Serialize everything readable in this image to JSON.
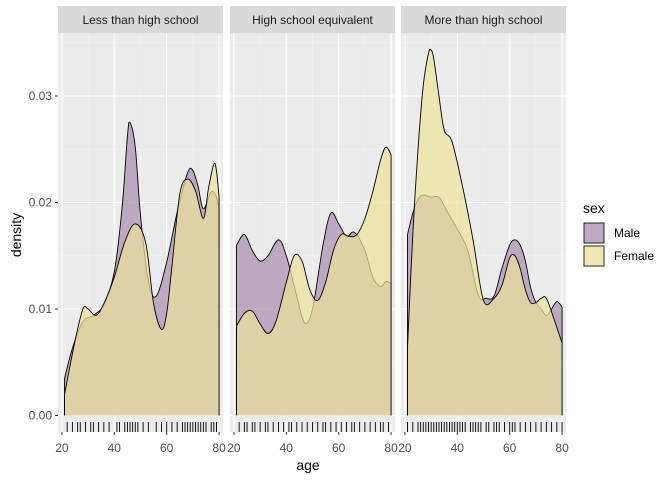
{
  "chart_data": {
    "type": "area",
    "subtype": "faceted-density-with-rug",
    "ylabel": "density",
    "xlabel": "age",
    "x_ticks": [
      20,
      40,
      60,
      80
    ],
    "y_ticks": [
      "0.00",
      "0.01",
      "0.02",
      "0.03"
    ],
    "ylim": [
      0,
      0.0355
    ],
    "xlim": [
      18.5,
      81.5
    ],
    "grid": true,
    "legend": {
      "title": "sex",
      "position": "right",
      "entries": [
        {
          "label": "Male",
          "color": "#a98fb0"
        },
        {
          "label": "Female",
          "color": "#ebe09a"
        }
      ]
    },
    "colors": {
      "male_fill": "#a98fb0",
      "female_fill": "#ebe09a",
      "overlap_fill": "#cdb78f",
      "panel_bg": "#ebebeb",
      "strip_bg": "#d9d9d9"
    },
    "panels": [
      {
        "title": "Less than high school",
        "series": [
          {
            "name": "Male",
            "x": [
              21,
              24,
              28,
              32,
              36,
              40,
              43,
              45,
              46,
              48,
              50,
              53,
              56,
              60,
              64,
              68,
              70,
              72,
              74,
              77,
              79,
              80
            ],
            "y": [
              0.0035,
              0.0063,
              0.0088,
              0.0094,
              0.0104,
              0.0135,
              0.0196,
              0.0262,
              0.0275,
              0.0252,
              0.0188,
              0.0126,
              0.0112,
              0.0144,
              0.0191,
              0.0228,
              0.023,
              0.0215,
              0.0194,
              0.021,
              0.0205,
              0.0194
            ]
          },
          {
            "name": "Female",
            "x": [
              21,
              25,
              28,
              30,
              33,
              36,
              40,
              44,
              48,
              52,
              55,
              58,
              60,
              62,
              65,
              68,
              71,
              74,
              76,
              78,
              79,
              80
            ],
            "y": [
              0.002,
              0.007,
              0.01,
              0.01,
              0.0094,
              0.0105,
              0.013,
              0.0163,
              0.018,
              0.0162,
              0.0105,
              0.0081,
              0.0096,
              0.014,
              0.0208,
              0.0222,
              0.0211,
              0.0185,
              0.0214,
              0.0236,
              0.023,
              0.0205
            ]
          }
        ],
        "rug": [
          22,
          24,
          26,
          27,
          29,
          31,
          32,
          34,
          36,
          38,
          41,
          42,
          44,
          45,
          46,
          47,
          48,
          49,
          51,
          53,
          56,
          58,
          60,
          62,
          64,
          66,
          67,
          68,
          69,
          70,
          71,
          72,
          73,
          74,
          75,
          77,
          78,
          79
        ]
      },
      {
        "title": "High school equivalent",
        "series": [
          {
            "name": "Male",
            "x": [
              21,
              24,
              27,
              30,
              33,
              37,
              40,
              44,
              47,
              50,
              54,
              57,
              60,
              63,
              66,
              70,
              73,
              76,
              78,
              80
            ],
            "y": [
              0.016,
              0.017,
              0.0155,
              0.0145,
              0.015,
              0.0165,
              0.015,
              0.0112,
              0.0087,
              0.01,
              0.016,
              0.019,
              0.018,
              0.0168,
              0.0172,
              0.0155,
              0.013,
              0.0121,
              0.0126,
              0.0124
            ]
          },
          {
            "name": "Female",
            "x": [
              21,
              24,
              27,
              30,
              33,
              36,
              40,
              43,
              46,
              49,
              52,
              55,
              58,
              61,
              64,
              67,
              70,
              73,
              76,
              78,
              80
            ],
            "y": [
              0.0084,
              0.0096,
              0.0098,
              0.0086,
              0.0077,
              0.0088,
              0.0125,
              0.015,
              0.0145,
              0.0118,
              0.0108,
              0.0125,
              0.0155,
              0.017,
              0.0168,
              0.017,
              0.0185,
              0.021,
              0.024,
              0.0252,
              0.0245
            ]
          }
        ],
        "rug": [
          22,
          24,
          25,
          27,
          28,
          30,
          32,
          33,
          35,
          37,
          39,
          41,
          42,
          44,
          46,
          48,
          50,
          52,
          54,
          55,
          57,
          59,
          61,
          63,
          65,
          66,
          68,
          70,
          72,
          74,
          76,
          77,
          79
        ]
      },
      {
        "title": "More than high school",
        "series": [
          {
            "name": "Male",
            "x": [
              21,
              23,
              25,
              27,
              30,
              33,
              36,
              40,
              44,
              48,
              51,
              54,
              57,
              60,
              62,
              64,
              66,
              68,
              70,
              72,
              74,
              76,
              78,
              80
            ],
            "y": [
              0.017,
              0.019,
              0.0203,
              0.0207,
              0.0205,
              0.0205,
              0.0192,
              0.0175,
              0.0155,
              0.0113,
              0.011,
              0.0112,
              0.0138,
              0.016,
              0.0165,
              0.016,
              0.0145,
              0.012,
              0.0106,
              0.01,
              0.0094,
              0.01,
              0.0107,
              0.0102
            ]
          },
          {
            "name": "Female",
            "x": [
              21,
              23,
              25,
              27,
              29,
              30,
              31,
              33,
              35,
              38,
              42,
              46,
              50,
              54,
              57,
              60,
              62,
              64,
              66,
              68,
              70,
              72,
              74,
              77,
              80
            ],
            "y": [
              0.0065,
              0.017,
              0.025,
              0.031,
              0.034,
              0.0343,
              0.0335,
              0.03,
              0.0268,
              0.0257,
              0.0215,
              0.0165,
              0.0108,
              0.011,
              0.0122,
              0.0148,
              0.015,
              0.0138,
              0.0118,
              0.0106,
              0.0106,
              0.011,
              0.011,
              0.009,
              0.0068
            ]
          }
        ],
        "rug": [
          21,
          23,
          25,
          26,
          27,
          28,
          29,
          30,
          31,
          32,
          33,
          34,
          35,
          36,
          37,
          38,
          39,
          40,
          41,
          42,
          43,
          45,
          46,
          47,
          48,
          49,
          51,
          52,
          54,
          55,
          56,
          58,
          60,
          61,
          62,
          64,
          66,
          68,
          70,
          72,
          74,
          76,
          78,
          80
        ]
      }
    ]
  }
}
